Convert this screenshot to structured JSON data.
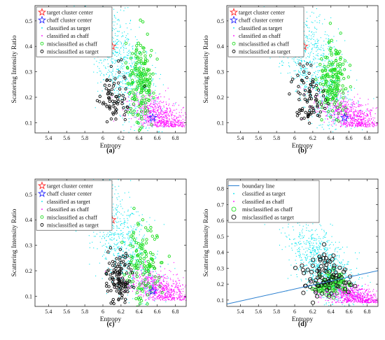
{
  "figure": {
    "panels": [
      "(a)",
      "(b)",
      "(c)",
      "(d)"
    ]
  },
  "colors": {
    "target": "#00e5ee",
    "chaff": "#ff00ff",
    "mis_chaff": "#22dd22",
    "mis_target": "#111111",
    "target_center": "#ff2a2a",
    "chaff_center": "#2a2aff",
    "boundary": "#2a7fd0"
  },
  "chart_data": [
    {
      "panel": "(a)",
      "type": "scatter",
      "xlabel": "Entropy",
      "ylabel": "Scattering Intensity Ratio",
      "xlim": [
        5.25,
        6.92
      ],
      "ylim": [
        0.06,
        0.56
      ],
      "xticks": [
        5.4,
        5.6,
        5.8,
        6,
        6.2,
        6.4,
        6.6,
        6.8
      ],
      "yticks": [
        0.1,
        0.2,
        0.3,
        0.4,
        0.5
      ],
      "legend": [
        "target cluster center",
        "chaff cluster center",
        "classified as target",
        "classified as chaff",
        "misclassified as chaff",
        "misclassified as target"
      ],
      "legend_position": "top-left",
      "grid": false,
      "target_center": [
        6.1,
        0.4
      ],
      "chaff_center": [
        6.55,
        0.12
      ],
      "series": [
        {
          "key": "target",
          "n": 900,
          "cx": 6.2,
          "cy": 0.33,
          "sx": 0.22,
          "sy": 0.1
        },
        {
          "key": "chaff",
          "n": 750,
          "cx": 6.62,
          "cy": 0.13,
          "sx": 0.17,
          "sy": 0.035
        },
        {
          "key": "mis_chaff",
          "n": 170,
          "cx": 6.42,
          "cy": 0.27,
          "sx": 0.07,
          "sy": 0.08
        },
        {
          "key": "mis_target",
          "n": 70,
          "cx": 6.12,
          "cy": 0.2,
          "sx": 0.09,
          "sy": 0.06
        }
      ]
    },
    {
      "panel": "(b)",
      "type": "scatter",
      "xlabel": "Entropy",
      "ylabel": "Scattering Intensity Ratio",
      "xlim": [
        5.25,
        6.92
      ],
      "ylim": [
        0.06,
        0.56
      ],
      "xticks": [
        5.4,
        5.6,
        5.8,
        6,
        6.2,
        6.4,
        6.6,
        6.8
      ],
      "yticks": [
        0.1,
        0.2,
        0.3,
        0.4,
        0.5
      ],
      "legend": [
        "target cluster center",
        "chaff cluster center",
        "classified as target",
        "classified as chaff",
        "misclassified as chaff",
        "misclassified as target"
      ],
      "legend_position": "top-left",
      "grid": false,
      "target_center": [
        6.1,
        0.4
      ],
      "chaff_center": [
        6.55,
        0.12
      ],
      "series": [
        {
          "key": "target",
          "n": 900,
          "cx": 6.2,
          "cy": 0.33,
          "sx": 0.22,
          "sy": 0.1
        },
        {
          "key": "chaff",
          "n": 750,
          "cx": 6.62,
          "cy": 0.13,
          "sx": 0.17,
          "sy": 0.035
        },
        {
          "key": "mis_chaff",
          "n": 170,
          "cx": 6.42,
          "cy": 0.27,
          "sx": 0.07,
          "sy": 0.08
        },
        {
          "key": "mis_target",
          "n": 80,
          "cx": 6.15,
          "cy": 0.19,
          "sx": 0.08,
          "sy": 0.06
        }
      ]
    },
    {
      "panel": "(c)",
      "type": "scatter",
      "xlabel": "Entropy",
      "ylabel": "Scattering Intensity Ratio",
      "xlim": [
        5.25,
        6.92
      ],
      "ylim": [
        0.06,
        0.56
      ],
      "xticks": [
        5.4,
        5.6,
        5.8,
        6,
        6.2,
        6.4,
        6.6,
        6.8
      ],
      "yticks": [
        0.1,
        0.2,
        0.3,
        0.4,
        0.5
      ],
      "legend": [
        "target cluster center",
        "chaff cluster center",
        "classified as target",
        "classified as chaff",
        "misclassified as chaff",
        "misclassified as target"
      ],
      "legend_position": "top-left",
      "grid": false,
      "target_center": [
        6.1,
        0.4
      ],
      "chaff_center": [
        6.55,
        0.12
      ],
      "series": [
        {
          "key": "target",
          "n": 900,
          "cx": 6.18,
          "cy": 0.33,
          "sx": 0.22,
          "sy": 0.1
        },
        {
          "key": "chaff",
          "n": 750,
          "cx": 6.62,
          "cy": 0.13,
          "sx": 0.17,
          "sy": 0.035
        },
        {
          "key": "mis_chaff",
          "n": 130,
          "cx": 6.45,
          "cy": 0.22,
          "sx": 0.09,
          "sy": 0.08
        },
        {
          "key": "mis_target",
          "n": 120,
          "cx": 6.18,
          "cy": 0.17,
          "sx": 0.07,
          "sy": 0.05
        }
      ]
    },
    {
      "panel": "(d)",
      "type": "scatter",
      "xlabel": "Entropy",
      "ylabel": "Scattering Intensity Ratio",
      "xlim": [
        5.25,
        6.92
      ],
      "ylim": [
        0.06,
        0.86
      ],
      "xticks": [
        5.4,
        5.6,
        5.8,
        6,
        6.2,
        6.4,
        6.6,
        6.8
      ],
      "yticks": [
        0.1,
        0.2,
        0.3,
        0.4,
        0.5,
        0.6,
        0.7,
        0.8
      ],
      "legend": [
        "boundary line",
        "classified as target",
        "classified as chaff",
        "misclassified as chaff",
        "misclassified as target"
      ],
      "legend_position": "top-left",
      "grid": false,
      "boundary": [
        [
          5.25,
          0.075
        ],
        [
          6.92,
          0.285
        ]
      ],
      "series": [
        {
          "key": "target",
          "n": 900,
          "cx": 6.3,
          "cy": 0.33,
          "sx": 0.2,
          "sy": 0.11
        },
        {
          "key": "chaff",
          "n": 750,
          "cx": 6.62,
          "cy": 0.13,
          "sx": 0.17,
          "sy": 0.035
        },
        {
          "key": "mis_chaff",
          "n": 90,
          "cx": 6.4,
          "cy": 0.2,
          "sx": 0.1,
          "sy": 0.03
        },
        {
          "key": "mis_target",
          "n": 90,
          "cx": 6.35,
          "cy": 0.26,
          "sx": 0.14,
          "sy": 0.07
        }
      ]
    }
  ]
}
